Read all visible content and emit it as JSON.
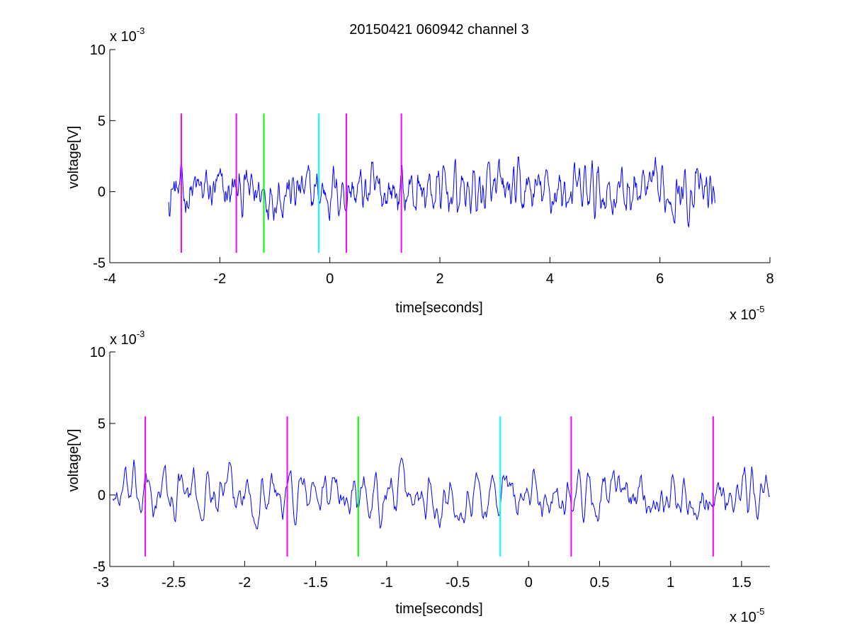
{
  "title": "20150421 060942 channel 3",
  "colors": {
    "signal": "#0000ff",
    "magenta": "#ff00ff",
    "green": "#00ff00",
    "cyan": "#00ffff",
    "axis": "#000000"
  },
  "chart_data": [
    {
      "type": "line",
      "title": "20150421 060942 channel 3",
      "xlabel": "time[seconds]",
      "ylabel": "voltage[V]",
      "xlim": [
        -4,
        8
      ],
      "ylim": [
        -5,
        10
      ],
      "x_multiplier": "x 10",
      "x_exponent": "-5",
      "y_multiplier": "x 10",
      "y_exponent": "-3",
      "xticks": [
        -4,
        -2,
        0,
        2,
        4,
        6,
        8
      ],
      "xtick_labels": [
        "-4",
        "-2",
        "0",
        "2",
        "4",
        "6",
        "8"
      ],
      "yticks": [
        -5,
        0,
        5,
        10
      ],
      "ytick_labels": [
        "-5",
        "0",
        "5",
        "10"
      ],
      "grid": false,
      "series": [
        {
          "kind": "noise-trace",
          "color": "blue",
          "x_start": -2.93,
          "x_end": 7.0,
          "approx_std": 0.95,
          "y_range_approx": [
            -4.0,
            5.0
          ]
        }
      ],
      "markers": [
        {
          "x": -2.7,
          "y_range": [
            -4.3,
            5.5
          ],
          "color": "magenta"
        },
        {
          "x": -1.7,
          "y_range": [
            -4.3,
            5.5
          ],
          "color": "magenta"
        },
        {
          "x": -1.2,
          "y_range": [
            -4.3,
            5.5
          ],
          "color": "green"
        },
        {
          "x": -0.2,
          "y_range": [
            -4.3,
            5.5
          ],
          "color": "cyan"
        },
        {
          "x": 0.3,
          "y_range": [
            -4.3,
            5.5
          ],
          "color": "magenta"
        },
        {
          "x": 1.3,
          "y_range": [
            -4.3,
            5.5
          ],
          "color": "magenta"
        }
      ]
    },
    {
      "type": "line",
      "title": "",
      "xlabel": "time[seconds]",
      "ylabel": "voltage[V]",
      "xlim": [
        -2.95,
        1.7
      ],
      "ylim": [
        -5,
        10
      ],
      "x_multiplier": "x 10",
      "x_exponent": "-5",
      "y_multiplier": "x 10",
      "y_exponent": "-3",
      "xticks": [
        -3,
        -2.5,
        -2,
        -1.5,
        -1,
        -0.5,
        0,
        0.5,
        1,
        1.5
      ],
      "xtick_labels": [
        "-3",
        "-2.5",
        "-2",
        "-1.5",
        "-1",
        "-0.5",
        "0",
        "0.5",
        "1",
        "1.5"
      ],
      "yticks": [
        -5,
        0,
        5,
        10
      ],
      "ytick_labels": [
        "-5",
        "0",
        "5",
        "10"
      ],
      "grid": false,
      "series": [
        {
          "kind": "noise-trace",
          "color": "blue",
          "x_start": -2.93,
          "x_end": 1.7,
          "approx_std": 0.95,
          "y_range_approx": [
            -3.9,
            3.0
          ]
        }
      ],
      "markers": [
        {
          "x": -2.7,
          "y_range": [
            -4.3,
            5.5
          ],
          "color": "magenta"
        },
        {
          "x": -1.7,
          "y_range": [
            -4.3,
            5.5
          ],
          "color": "magenta"
        },
        {
          "x": -1.2,
          "y_range": [
            -4.3,
            5.5
          ],
          "color": "green"
        },
        {
          "x": -0.2,
          "y_range": [
            -4.3,
            5.5
          ],
          "color": "cyan"
        },
        {
          "x": 0.3,
          "y_range": [
            -4.3,
            5.5
          ],
          "color": "magenta"
        },
        {
          "x": 1.3,
          "y_range": [
            -4.3,
            5.5
          ],
          "color": "magenta"
        }
      ]
    }
  ]
}
